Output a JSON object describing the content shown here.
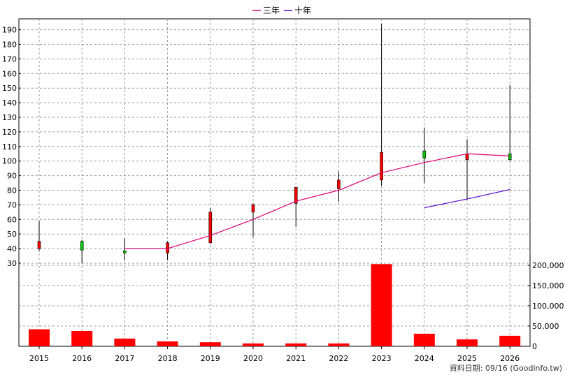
{
  "legend": {
    "items": [
      {
        "label": "三年",
        "color": "#dd0077"
      },
      {
        "label": "十年",
        "color": "#5500cc"
      }
    ]
  },
  "footer": "資料日期: 09/16  (Goodinfo.tw)",
  "chart_data": {
    "type": "candlestick",
    "categories": [
      "2015",
      "2016",
      "2017",
      "2018",
      "2019",
      "2020",
      "2021",
      "2022",
      "2023",
      "2024",
      "2025",
      "2026"
    ],
    "price_axis": {
      "ticks": [
        30,
        40,
        50,
        60,
        70,
        80,
        90,
        100,
        110,
        120,
        130,
        140,
        150,
        160,
        170,
        180,
        190
      ]
    },
    "volume_axis": {
      "ticks": [
        0,
        50000,
        100000,
        150000,
        200000
      ],
      "tick_labels": [
        "0",
        "50,000",
        "100,000",
        "150,000",
        "200,000"
      ]
    },
    "candles": [
      {
        "o": 45,
        "c": 40,
        "h": 59,
        "l": 38
      },
      {
        "o": 39,
        "c": 45,
        "h": 46,
        "l": 30
      },
      {
        "o": 37,
        "c": 38.5,
        "h": 47,
        "l": 32
      },
      {
        "o": 44,
        "c": 37,
        "h": 45,
        "l": 32
      },
      {
        "o": 65,
        "c": 44,
        "h": 68,
        "l": 43
      },
      {
        "o": 70,
        "c": 65,
        "h": 71,
        "l": 48
      },
      {
        "o": 82,
        "c": 71,
        "h": 82,
        "l": 55
      },
      {
        "o": 87,
        "c": 81,
        "h": 93,
        "l": 72
      },
      {
        "o": 106,
        "c": 87,
        "h": 194,
        "l": 83
      },
      {
        "o": 102,
        "c": 107,
        "h": 123,
        "l": 85
      },
      {
        "o": 105,
        "c": 101,
        "h": 115,
        "l": 74
      },
      {
        "o": 101,
        "c": 105,
        "h": 152,
        "l": 100
      }
    ],
    "series": [
      {
        "name": "三年",
        "color": "#dd0077",
        "values": [
          null,
          null,
          40,
          40,
          49,
          60,
          72.5,
          80,
          92,
          99,
          105,
          103.5
        ]
      },
      {
        "name": "十年",
        "color": "#5500cc",
        "values": [
          null,
          null,
          null,
          null,
          null,
          null,
          null,
          null,
          null,
          68,
          74,
          80.5
        ]
      }
    ],
    "volume": [
      42000,
      38000,
      19000,
      12000,
      10000,
      7000,
      7000,
      7000,
      203000,
      31000,
      17000,
      26000
    ],
    "colors": {
      "up": "#00cc00",
      "down": "#ff0000",
      "volume": "#ff0000",
      "wick": "#000000"
    }
  }
}
